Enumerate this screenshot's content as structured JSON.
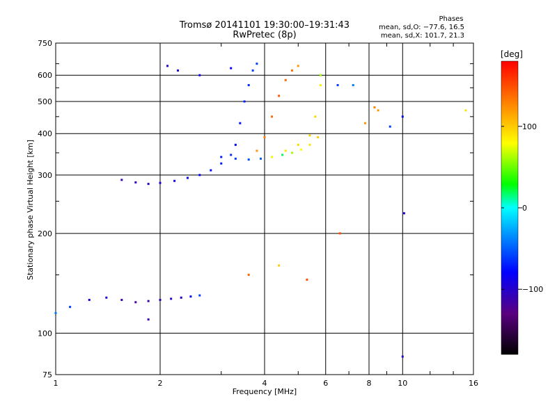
{
  "chart_data": {
    "type": "scatter",
    "title": "Tromsø 20141101 19:30:00–19:31:43",
    "subtitle": "RwPretec (8p)",
    "xlabel": "Frequency [MHz]",
    "ylabel": "Stationary phase Virtual Height [km]",
    "x_scale": "log",
    "y_scale": "log",
    "xlim": [
      1,
      16
    ],
    "ylim": [
      75,
      750
    ],
    "x_ticks": [
      1,
      2,
      4,
      6,
      8,
      10,
      16
    ],
    "x_tick_labels": [
      "1",
      "2",
      "4",
      "6",
      "8",
      "10",
      "16"
    ],
    "y_ticks": [
      75,
      100,
      200,
      300,
      400,
      500,
      600,
      750
    ],
    "y_tick_labels": [
      "75",
      "100",
      "200",
      "300",
      "400",
      "500",
      "600",
      "750"
    ],
    "grid": true,
    "phase_info": {
      "title": "Phases",
      "line_o": "mean, sd,O: −77.6, 16.5",
      "line_x": "mean, sd,X: 101.7, 21.3"
    },
    "colorbar": {
      "label": "[deg]",
      "range": [
        -180,
        180
      ],
      "ticks": [
        100,
        0,
        -100
      ],
      "tick_labels": [
        "100",
        "0",
        "−100"
      ]
    },
    "series": [
      {
        "trace": "low-trace",
        "x": [
          1.0,
          1.1,
          1.25,
          1.4,
          1.55,
          1.7,
          1.85,
          2.0,
          2.15,
          2.3,
          2.45,
          2.6
        ],
        "y": [
          115,
          120,
          126,
          128,
          126,
          124,
          125,
          126,
          127,
          128,
          129,
          130
        ],
        "phase": [
          -40,
          -60,
          -90,
          -100,
          -110,
          -115,
          -115,
          -110,
          -100,
          -95,
          -85,
          -60
        ]
      },
      {
        "trace": "f-lower-trace",
        "x": [
          1.55,
          1.7,
          1.85,
          2.0,
          2.2,
          2.4,
          2.6,
          2.8,
          3.0,
          3.2
        ],
        "y": [
          290,
          285,
          282,
          284,
          288,
          294,
          300,
          310,
          325,
          345
        ],
        "phase": [
          -110,
          -105,
          -100,
          -95,
          -90,
          -85,
          -80,
          -75,
          -70,
          -65
        ]
      },
      {
        "trace": "e-x-trace",
        "x": [
          3.0,
          3.3,
          3.6,
          3.9,
          4.2,
          4.5,
          4.8,
          5.1,
          5.4,
          5.7
        ],
        "y": [
          340,
          336,
          334,
          336,
          340,
          345,
          350,
          358,
          370,
          390
        ],
        "phase": [
          -70,
          -60,
          -55,
          -50,
          -30,
          20,
          60,
          80,
          90,
          100
        ]
      },
      {
        "trace": "high-o-trace",
        "x": [
          3.8,
          4.0,
          4.2,
          4.4,
          4.6,
          4.8,
          5.0
        ],
        "y": [
          355,
          390,
          450,
          520,
          580,
          620,
          640
        ],
        "phase": [
          120,
          130,
          140,
          145,
          140,
          135,
          120
        ]
      },
      {
        "trace": "high-x-trace",
        "x": [
          4.2,
          4.6,
          5.0,
          5.4,
          5.6,
          5.8
        ],
        "y": [
          340,
          355,
          370,
          395,
          450,
          560
        ],
        "phase": [
          80,
          90,
          95,
          100,
          95,
          85
        ]
      },
      {
        "trace": "oblique-column",
        "x": [
          3.3,
          3.4,
          3.5,
          3.6,
          3.7,
          3.8
        ],
        "y": [
          370,
          430,
          500,
          560,
          620,
          650
        ],
        "phase": [
          -80,
          -75,
          -70,
          -65,
          -60,
          -60
        ]
      },
      {
        "trace": "scatter-points",
        "x": [
          1.85,
          2.1,
          2.25,
          2.6,
          3.2,
          5.8,
          6.5,
          7.2,
          8.3,
          8.5,
          9.2,
          10.0,
          10.1,
          15.2,
          3.6,
          5.3,
          6.6,
          7.8,
          4.4,
          10.0
        ],
        "y": [
          110,
          640,
          620,
          600,
          630,
          600,
          560,
          560,
          480,
          470,
          420,
          450,
          230,
          470,
          150,
          145,
          200,
          430,
          160,
          85
        ],
        "phase": [
          -110,
          -100,
          -95,
          -90,
          -80,
          60,
          -60,
          -40,
          130,
          120,
          -60,
          -80,
          -100,
          90,
          140,
          150,
          150,
          120,
          100,
          -100
        ]
      }
    ]
  }
}
